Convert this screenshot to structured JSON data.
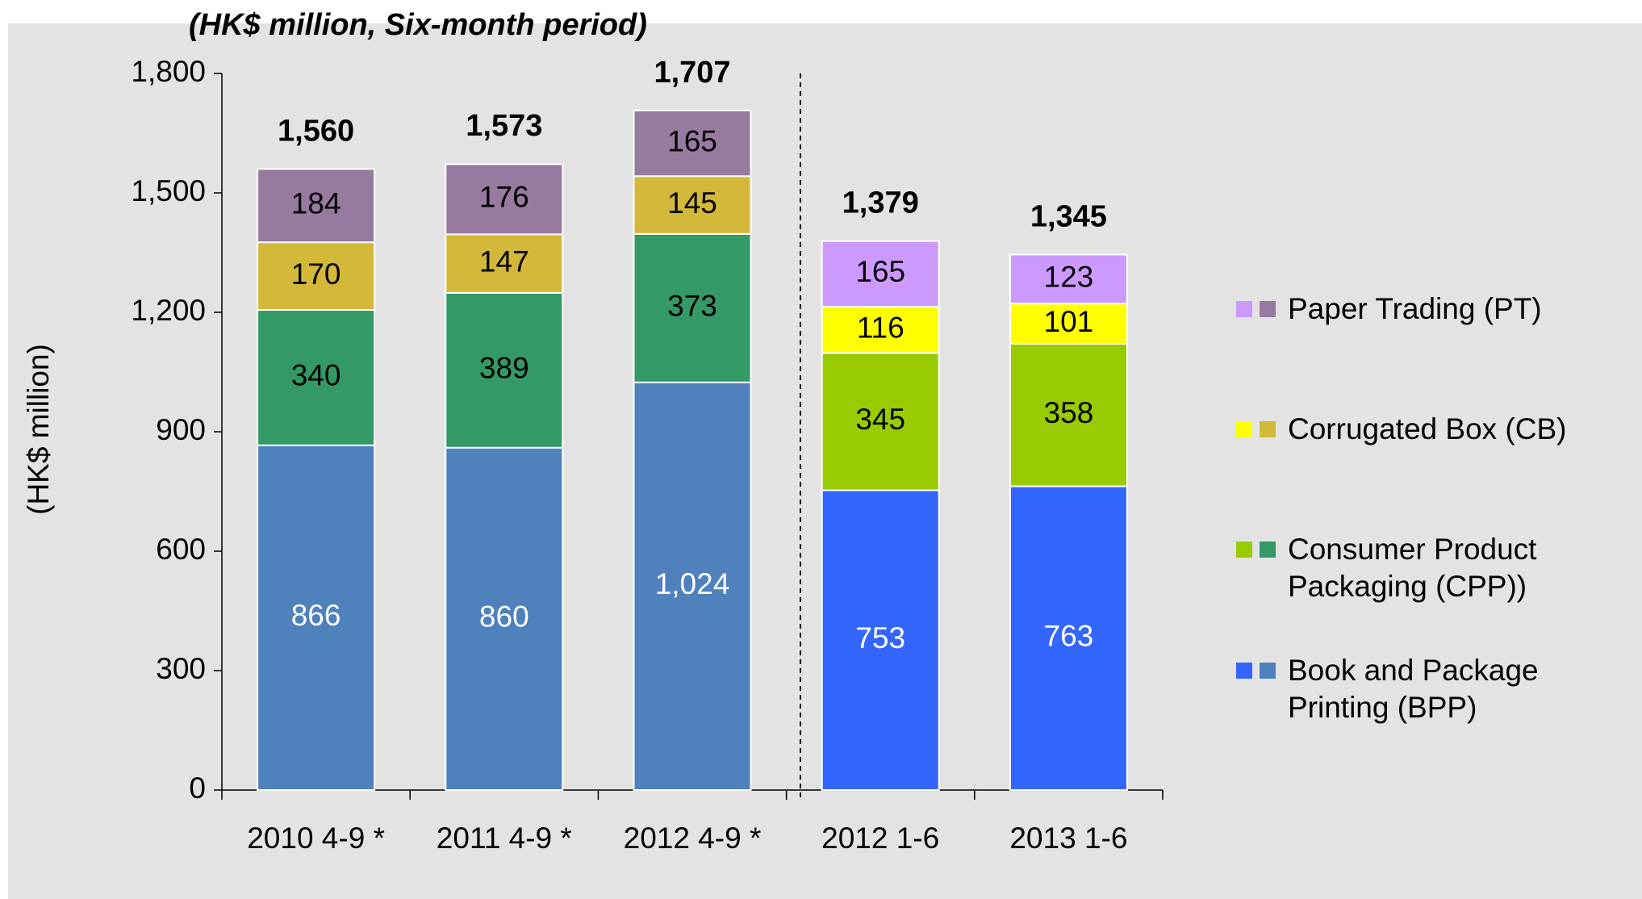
{
  "chart_data": {
    "type": "stacked-bar",
    "title": "(HK$ million, Six-month period)",
    "y_label": "(HK$ million)",
    "categories": [
      "2010 4-9 *",
      "2011 4-9 *",
      "2012 4-9 *",
      "2012 1-6",
      "2013 1-6"
    ],
    "series": [
      {
        "name": "Book and Package Printing (BPP)",
        "colors": [
          "#4f81bd",
          "#4f81bd",
          "#4f81bd",
          "#3366ff",
          "#3366ff"
        ],
        "label_color": "#ffffff",
        "values": [
          866,
          860,
          1024,
          753,
          763
        ],
        "value_labels": [
          "866",
          "860",
          "1,024",
          "753",
          "763"
        ]
      },
      {
        "name": "Consumer Product Packaging (CPP))",
        "colors": [
          "#339966",
          "#339966",
          "#339966",
          "#99cc00",
          "#99cc00"
        ],
        "label_color": "#000000",
        "values": [
          340,
          389,
          373,
          345,
          358
        ]
      },
      {
        "name": "Corrugated Box (CB)",
        "colors": [
          "#d4b83a",
          "#d4b83a",
          "#d4b83a",
          "#ffff00",
          "#ffff00"
        ],
        "label_color": "#000000",
        "values": [
          170,
          147,
          145,
          116,
          101
        ]
      },
      {
        "name": "Paper Trading (PT)",
        "colors": [
          "#977aa0",
          "#977aa0",
          "#977aa0",
          "#cc99ff",
          "#cc99ff"
        ],
        "label_color": "#000000",
        "values": [
          184,
          176,
          165,
          165,
          123
        ]
      }
    ],
    "totals": [
      1560,
      1573,
      1707,
      1379,
      1345
    ],
    "total_labels": [
      "1,560",
      "1,573",
      "1,707",
      "1,379",
      "1,345"
    ],
    "ylim": [
      0,
      1800
    ],
    "yticks": [
      0,
      300,
      600,
      900,
      {
        "value": 1200,
        "label": "1,200"
      },
      {
        "value": 1500,
        "label": "1,500"
      },
      {
        "value": 1800,
        "label": "1,800"
      }
    ],
    "legend": "right"
  }
}
